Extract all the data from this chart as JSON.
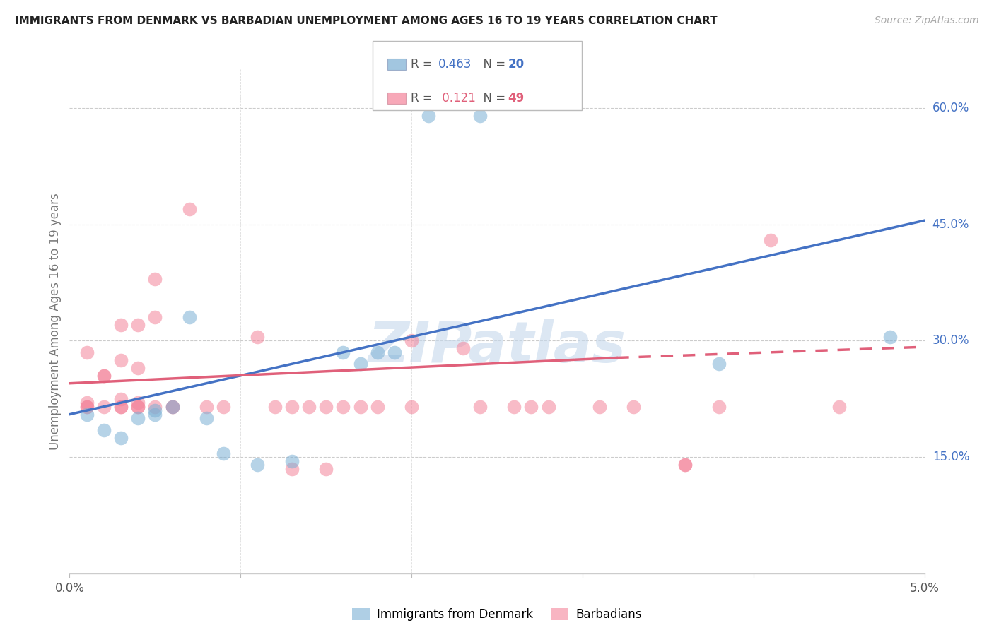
{
  "title": "IMMIGRANTS FROM DENMARK VS BARBADIAN UNEMPLOYMENT AMONG AGES 16 TO 19 YEARS CORRELATION CHART",
  "source": "Source: ZipAtlas.com",
  "ylabel": "Unemployment Among Ages 16 to 19 years",
  "xlim": [
    0.0,
    0.05
  ],
  "ylim": [
    0.0,
    0.65
  ],
  "watermark": "ZIPatlas",
  "blue_color": "#7BAFD4",
  "pink_color": "#F4849A",
  "blue_line_color": "#4472C4",
  "pink_line_color": "#E0607A",
  "blue_scatter": [
    [
      0.001,
      0.205
    ],
    [
      0.002,
      0.185
    ],
    [
      0.003,
      0.175
    ],
    [
      0.004,
      0.2
    ],
    [
      0.005,
      0.205
    ],
    [
      0.005,
      0.21
    ],
    [
      0.006,
      0.215
    ],
    [
      0.007,
      0.33
    ],
    [
      0.008,
      0.2
    ],
    [
      0.009,
      0.155
    ],
    [
      0.011,
      0.14
    ],
    [
      0.013,
      0.145
    ],
    [
      0.016,
      0.285
    ],
    [
      0.017,
      0.27
    ],
    [
      0.018,
      0.285
    ],
    [
      0.019,
      0.285
    ],
    [
      0.021,
      0.59
    ],
    [
      0.024,
      0.59
    ],
    [
      0.038,
      0.27
    ],
    [
      0.048,
      0.305
    ]
  ],
  "pink_scatter": [
    [
      0.001,
      0.215
    ],
    [
      0.001,
      0.215
    ],
    [
      0.001,
      0.22
    ],
    [
      0.001,
      0.285
    ],
    [
      0.002,
      0.215
    ],
    [
      0.002,
      0.255
    ],
    [
      0.002,
      0.255
    ],
    [
      0.003,
      0.215
    ],
    [
      0.003,
      0.215
    ],
    [
      0.003,
      0.225
    ],
    [
      0.003,
      0.275
    ],
    [
      0.003,
      0.32
    ],
    [
      0.004,
      0.215
    ],
    [
      0.004,
      0.215
    ],
    [
      0.004,
      0.22
    ],
    [
      0.004,
      0.265
    ],
    [
      0.004,
      0.32
    ],
    [
      0.005,
      0.33
    ],
    [
      0.005,
      0.38
    ],
    [
      0.005,
      0.215
    ],
    [
      0.006,
      0.215
    ],
    [
      0.006,
      0.215
    ],
    [
      0.007,
      0.47
    ],
    [
      0.008,
      0.215
    ],
    [
      0.009,
      0.215
    ],
    [
      0.011,
      0.305
    ],
    [
      0.012,
      0.215
    ],
    [
      0.013,
      0.135
    ],
    [
      0.013,
      0.215
    ],
    [
      0.014,
      0.215
    ],
    [
      0.015,
      0.135
    ],
    [
      0.015,
      0.215
    ],
    [
      0.016,
      0.215
    ],
    [
      0.017,
      0.215
    ],
    [
      0.018,
      0.215
    ],
    [
      0.02,
      0.215
    ],
    [
      0.02,
      0.3
    ],
    [
      0.023,
      0.29
    ],
    [
      0.024,
      0.215
    ],
    [
      0.026,
      0.215
    ],
    [
      0.027,
      0.215
    ],
    [
      0.028,
      0.215
    ],
    [
      0.031,
      0.215
    ],
    [
      0.033,
      0.215
    ],
    [
      0.036,
      0.14
    ],
    [
      0.036,
      0.14
    ],
    [
      0.038,
      0.215
    ],
    [
      0.041,
      0.43
    ],
    [
      0.045,
      0.215
    ]
  ],
  "blue_trendline": [
    [
      0.0,
      0.205
    ],
    [
      0.05,
      0.455
    ]
  ],
  "pink_trendline_solid": [
    [
      0.0,
      0.245
    ],
    [
      0.032,
      0.278
    ]
  ],
  "pink_trendline_dashed": [
    [
      0.032,
      0.278
    ],
    [
      0.05,
      0.292
    ]
  ]
}
